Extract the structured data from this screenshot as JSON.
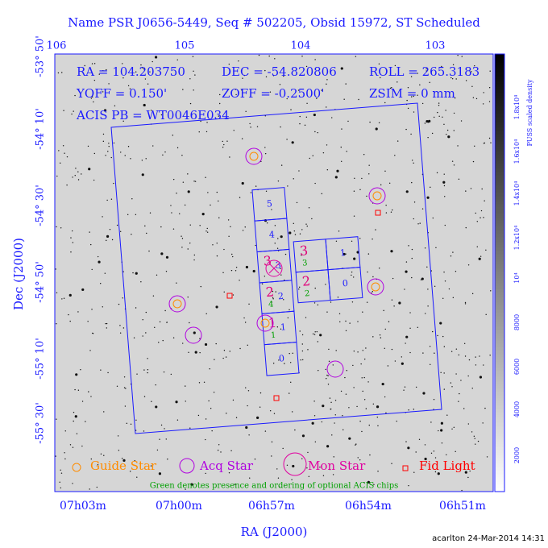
{
  "title": "Name PSR J0656-5449, Seq # 502205, Obsid 15972, ST Scheduled",
  "info": [
    "RA = 104.203750",
    "DEC = -54.820806",
    "ROLL = 265.3183",
    "YOFF = 0.150'",
    "ZOFF = -0.2500'",
    "ZSIM = 0 mm",
    "ACIS PB = WT0046E034"
  ],
  "top_axis": [
    "106",
    "105",
    "104",
    "103"
  ],
  "bottom_axis": [
    "07h03m",
    "07h00m",
    "06h57m",
    "06h54m",
    "06h51m"
  ],
  "x_label": "RA (J2000)",
  "left_axis": [
    "-53° 50'",
    "-54° 10'",
    "-54° 30'",
    "-54° 50'",
    "-55° 10'",
    "-55° 30'"
  ],
  "y_label": "Dec (J2000)",
  "colorbar_label": "PUSS scaled density",
  "colorbar_ticks": [
    "2000",
    "4000",
    "6000",
    "8000",
    "10⁴",
    "1.2x10⁴",
    "1.4x10⁴",
    "1.6x10⁴",
    "1.8x10⁴"
  ],
  "chips": {
    "left": [
      {
        "label": "5"
      },
      {
        "label": "4"
      },
      {
        "label": "3",
        "ccd": "3"
      },
      {
        "label": "2",
        "ccd": "2",
        "order": "4"
      },
      {
        "label": "1",
        "ccd": "1",
        "order": "1"
      },
      {
        "label": "0"
      }
    ],
    "right": [
      {
        "ccd": "3",
        "order": "3"
      },
      {
        "label": "1"
      },
      {
        "ccd": "2",
        "order": "2"
      },
      {
        "label": "0"
      }
    ]
  },
  "legend": [
    "Guide Star",
    "Acq Star",
    "Mon Star",
    "Fid Light"
  ],
  "note": "Green denotes presence and ordering of optional ACIS chips",
  "footer": "acarlton 24-Mar-2014 14:31"
}
